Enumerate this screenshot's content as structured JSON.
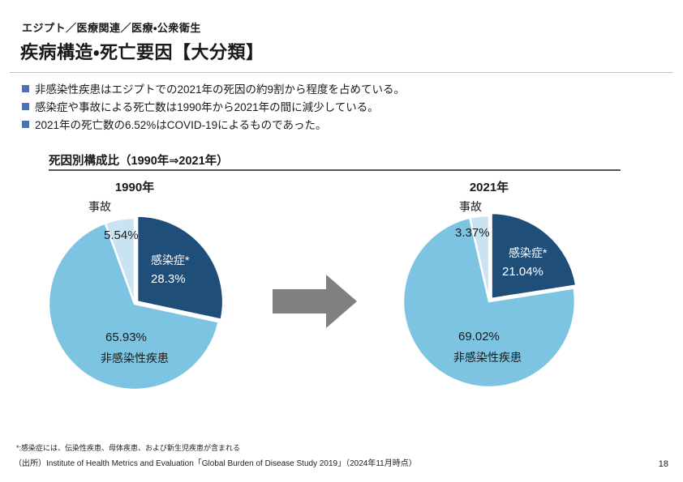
{
  "page": {
    "kicker": "エジプト／医療関連／医療・公衆衛生",
    "title": "疾病構造・死亡要因【大分類】",
    "page_number": "18"
  },
  "bullets": [
    "非感染性疾患はエジプトでの2021年の死因の約9割から程度を占めている。",
    "感染症や事故による死亡数は1990年から2021年の間に減少している。",
    "2021年の死亡数の6.52%はCOVID-19によるものであった。"
  ],
  "section": {
    "title": "死因別構成比（1990年⇒2021年）"
  },
  "footnotes": {
    "note": "*:感染症には、伝染性疾患、母体疾患、および新生児疾患が含まれる",
    "source": "（出所）Institute of Health Metrics and Evaluation「Global Burden of Disease Study 2019」（2024年11月時点）"
  },
  "colors": {
    "infection": "#1F4E79",
    "ncd": "#7CC4E2",
    "accident": "#C9E3F3",
    "bullet_square": "#4472C4",
    "arrow": "#808080",
    "section_rule": "#555555"
  },
  "chart_data": [
    {
      "type": "pie",
      "title": "1990年",
      "start": "12-oclock",
      "direction": "clockwise",
      "slices": [
        {
          "label": "感染症*",
          "value": 28.3,
          "display": "28.3%",
          "color": "#1F4E79",
          "exploded": true
        },
        {
          "label": "非感染性疾患",
          "value": 65.93,
          "display": "65.93%",
          "color": "#7CC4E2",
          "exploded": false
        },
        {
          "label": "事故",
          "value": 5.54,
          "display": "5.54%",
          "color": "#C9E3F3",
          "exploded": false
        }
      ]
    },
    {
      "type": "pie",
      "title": "2021年",
      "start": "12-oclock",
      "direction": "clockwise",
      "slices": [
        {
          "label": "感染症*",
          "value": 21.04,
          "display": "21.04%",
          "color": "#1F4E79",
          "exploded": true
        },
        {
          "label": "非感染性疾患",
          "value": 69.02,
          "display": "69.02%",
          "color": "#7CC4E2",
          "exploded": false
        },
        {
          "label": "事故",
          "value": 3.37,
          "display": "3.37%",
          "color": "#C9E3F3",
          "exploded": false
        }
      ]
    }
  ]
}
